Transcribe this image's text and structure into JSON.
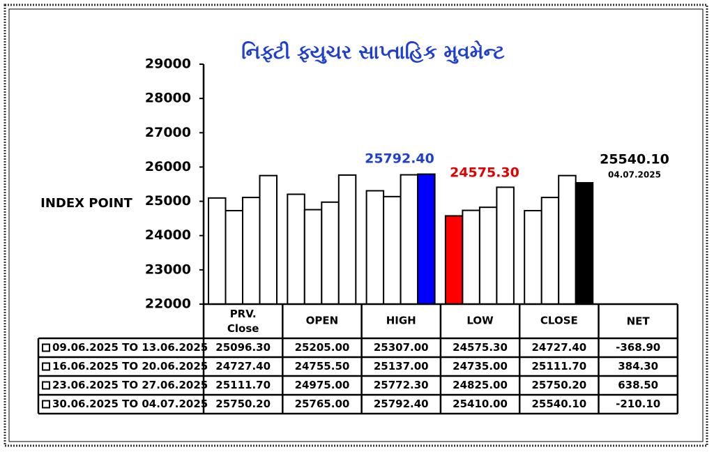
{
  "chart_data": {
    "type": "bar",
    "title": "નિફ્ટી ફ્યુચર સાપ્તાહિક મુવમેન્ટ",
    "ylabel": "INDEX POINT",
    "categories": [
      "PRV. Close",
      "OPEN",
      "HIGH",
      "LOW",
      "CLOSE"
    ],
    "net_header": "NET",
    "ylim": [
      22000,
      29000
    ],
    "yticks": [
      22000,
      23000,
      24000,
      25000,
      26000,
      27000,
      28000,
      29000
    ],
    "series": [
      {
        "name": "09.06.2025 TO 13.06.2025",
        "color": "#ffffff",
        "colors": [
          "#ffffff",
          "#ffffff",
          "#ffffff",
          "#ff0000",
          "#ffffff"
        ],
        "values": [
          25096.3,
          25205,
          25307,
          24575.3,
          24727.4
        ],
        "value_labels": [
          "25096.30",
          "25205.00",
          "25307.00",
          "24575.30",
          "24727.40"
        ],
        "net": -368.9,
        "net_label": "-368.90"
      },
      {
        "name": "16.06.2025 TO 20.06.2025",
        "color": "#ffffff",
        "colors": [
          "#ffffff",
          "#ffffff",
          "#ffffff",
          "#ffffff",
          "#ffffff"
        ],
        "values": [
          24727.4,
          24755.5,
          25137,
          24735,
          25111.7
        ],
        "value_labels": [
          "24727.40",
          "24755.50",
          "25137.00",
          "24735.00",
          "25111.70"
        ],
        "net": 384.3,
        "net_label": "384.30"
      },
      {
        "name": "23.06.2025 TO 27.06.2025",
        "color": "#ffffff",
        "colors": [
          "#ffffff",
          "#ffffff",
          "#ffffff",
          "#ffffff",
          "#ffffff"
        ],
        "values": [
          25111.7,
          24975,
          25772.3,
          24825,
          25750.2
        ],
        "value_labels": [
          "25111.70",
          "24975.00",
          "25772.30",
          "24825.00",
          "25750.20"
        ],
        "net": 638.5,
        "net_label": "638.50"
      },
      {
        "name": "30.06.2025 TO 04.07.2025",
        "color": "#ffffff",
        "colors": [
          "#ffffff",
          "#ffffff",
          "#0000ff",
          "#ffffff",
          "#000000"
        ],
        "values": [
          25750.2,
          25765,
          25792.4,
          25410,
          25540.1
        ],
        "value_labels": [
          "25750.20",
          "25765.00",
          "25792.40",
          "25410.00",
          "25540.10"
        ],
        "net": -210.1,
        "net_label": "-210.10"
      }
    ],
    "annotations": [
      {
        "text": "25792.40",
        "color": "#1f3fd0"
      },
      {
        "text": "24575.30",
        "color": "#e00000"
      },
      {
        "text": "25540.10",
        "color": "#000000"
      },
      {
        "text": "04.07.2025",
        "color": "#000000"
      }
    ]
  }
}
